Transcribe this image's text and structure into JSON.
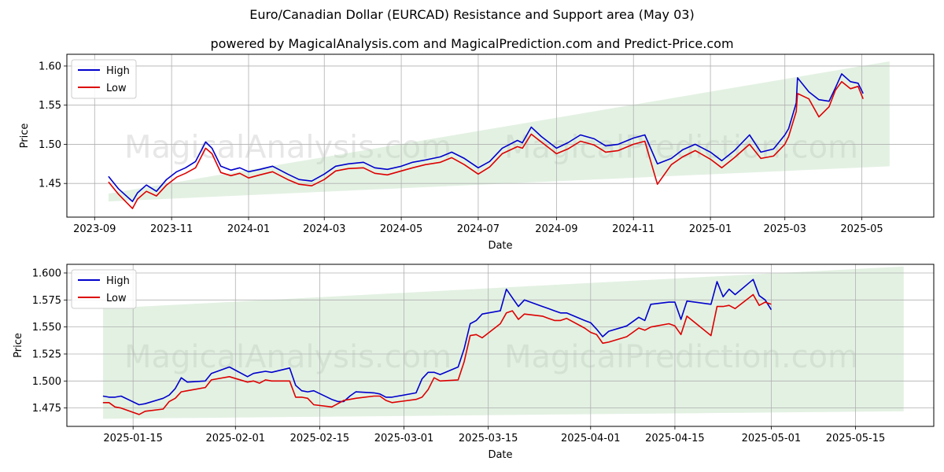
{
  "title": "Euro/Canadian Dollar (EURCAD) Resistance and Support area (May 03)",
  "subtitle": "powered by MagicalAnalysis.com and MagicalPrediction.com and Predict-Price.com",
  "watermarks": [
    "MagicalAnalysis.com",
    "MagicalPrediction.com"
  ],
  "colors": {
    "high": "#0000cc",
    "low": "#dd0000",
    "band": "#b8dcb8",
    "grid": "#b0b0b0"
  },
  "chart_data": [
    {
      "type": "line",
      "xlabel": "Date",
      "ylabel": "Price",
      "grid": true,
      "legend_position": "top-left",
      "xlim": [
        "2023-08-10",
        "2025-06-27"
      ],
      "ylim": [
        1.407,
        1.615
      ],
      "xticks": [
        "2023-09",
        "2023-11",
        "2024-01",
        "2024-03",
        "2024-05",
        "2024-07",
        "2024-09",
        "2024-11",
        "2025-01",
        "2025-03",
        "2025-05"
      ],
      "yticks": [
        1.45,
        1.5,
        1.55,
        1.6
      ],
      "ytick_decimals": 2,
      "band": {
        "x": [
          "2023-09-12",
          "2025-05-23"
        ],
        "upper": [
          1.437,
          1.606
        ],
        "lower": [
          1.427,
          1.472
        ]
      },
      "series": [
        {
          "name": "High",
          "x": [
            "2023-09-12",
            "2023-09-20",
            "2023-10-01",
            "2023-10-05",
            "2023-10-12",
            "2023-10-20",
            "2023-10-28",
            "2023-11-05",
            "2023-11-12",
            "2023-11-20",
            "2023-11-28",
            "2023-12-03",
            "2023-12-10",
            "2023-12-18",
            "2023-12-25",
            "2024-01-01",
            "2024-01-10",
            "2024-01-20",
            "2024-02-01",
            "2024-02-10",
            "2024-02-20",
            "2024-03-01",
            "2024-03-10",
            "2024-03-20",
            "2024-04-01",
            "2024-04-10",
            "2024-04-20",
            "2024-05-01",
            "2024-05-10",
            "2024-05-20",
            "2024-06-01",
            "2024-06-10",
            "2024-06-20",
            "2024-07-01",
            "2024-07-10",
            "2024-07-20",
            "2024-08-01",
            "2024-08-05",
            "2024-08-12",
            "2024-08-20",
            "2024-09-01",
            "2024-09-10",
            "2024-09-20",
            "2024-10-01",
            "2024-10-10",
            "2024-10-20",
            "2024-11-01",
            "2024-11-10",
            "2024-11-20",
            "2024-12-01",
            "2024-12-10",
            "2024-12-20",
            "2025-01-01",
            "2025-01-10",
            "2025-01-20",
            "2025-02-01",
            "2025-02-10",
            "2025-02-20",
            "2025-03-01",
            "2025-03-04",
            "2025-03-10",
            "2025-03-11",
            "2025-03-20",
            "2025-03-28",
            "2025-04-05",
            "2025-04-10",
            "2025-04-15",
            "2025-04-22",
            "2025-04-28",
            "2025-05-02"
          ],
          "values": [
            1.459,
            1.443,
            1.427,
            1.438,
            1.448,
            1.44,
            1.455,
            1.465,
            1.47,
            1.478,
            1.503,
            1.495,
            1.472,
            1.467,
            1.47,
            1.465,
            1.468,
            1.472,
            1.462,
            1.455,
            1.453,
            1.462,
            1.472,
            1.475,
            1.477,
            1.47,
            1.468,
            1.472,
            1.477,
            1.48,
            1.484,
            1.49,
            1.482,
            1.47,
            1.478,
            1.495,
            1.505,
            1.502,
            1.522,
            1.51,
            1.495,
            1.502,
            1.512,
            1.507,
            1.498,
            1.5,
            1.508,
            1.512,
            1.475,
            1.482,
            1.493,
            1.5,
            1.49,
            1.479,
            1.492,
            1.512,
            1.49,
            1.494,
            1.512,
            1.52,
            1.553,
            1.585,
            1.567,
            1.557,
            1.555,
            1.572,
            1.59,
            1.58,
            1.578,
            1.565
          ]
        },
        {
          "name": "Low",
          "x": [
            "2023-09-12",
            "2023-09-20",
            "2023-10-01",
            "2023-10-05",
            "2023-10-12",
            "2023-10-20",
            "2023-10-28",
            "2023-11-05",
            "2023-11-12",
            "2023-11-20",
            "2023-11-28",
            "2023-12-03",
            "2023-12-10",
            "2023-12-18",
            "2023-12-25",
            "2024-01-01",
            "2024-01-10",
            "2024-01-20",
            "2024-02-01",
            "2024-02-10",
            "2024-02-20",
            "2024-03-01",
            "2024-03-10",
            "2024-03-20",
            "2024-04-01",
            "2024-04-10",
            "2024-04-20",
            "2024-05-01",
            "2024-05-10",
            "2024-05-20",
            "2024-06-01",
            "2024-06-10",
            "2024-06-20",
            "2024-07-01",
            "2024-07-10",
            "2024-07-20",
            "2024-08-01",
            "2024-08-05",
            "2024-08-12",
            "2024-08-20",
            "2024-09-01",
            "2024-09-10",
            "2024-09-20",
            "2024-10-01",
            "2024-10-10",
            "2024-10-20",
            "2024-11-01",
            "2024-11-10",
            "2024-11-20",
            "2024-12-01",
            "2024-12-10",
            "2024-12-20",
            "2025-01-01",
            "2025-01-10",
            "2025-01-20",
            "2025-02-01",
            "2025-02-10",
            "2025-02-20",
            "2025-03-01",
            "2025-03-04",
            "2025-03-10",
            "2025-03-11",
            "2025-03-20",
            "2025-03-28",
            "2025-04-05",
            "2025-04-10",
            "2025-04-15",
            "2025-04-22",
            "2025-04-28",
            "2025-05-02"
          ],
          "values": [
            1.452,
            1.436,
            1.418,
            1.43,
            1.44,
            1.434,
            1.448,
            1.458,
            1.463,
            1.47,
            1.495,
            1.488,
            1.464,
            1.46,
            1.463,
            1.457,
            1.461,
            1.465,
            1.455,
            1.449,
            1.447,
            1.455,
            1.466,
            1.469,
            1.47,
            1.463,
            1.461,
            1.466,
            1.47,
            1.474,
            1.477,
            1.483,
            1.474,
            1.462,
            1.471,
            1.488,
            1.497,
            1.495,
            1.513,
            1.503,
            1.488,
            1.494,
            1.504,
            1.499,
            1.49,
            1.492,
            1.5,
            1.504,
            1.449,
            1.474,
            1.484,
            1.492,
            1.481,
            1.47,
            1.483,
            1.5,
            1.482,
            1.485,
            1.5,
            1.51,
            1.542,
            1.565,
            1.558,
            1.535,
            1.548,
            1.569,
            1.58,
            1.571,
            1.574,
            1.558
          ]
        }
      ]
    },
    {
      "type": "line",
      "xlabel": "Date",
      "ylabel": "Price",
      "grid": true,
      "legend_position": "top-left",
      "xlim": [
        "2025-01-04",
        "2025-05-28"
      ],
      "ylim": [
        1.458,
        1.608
      ],
      "xticks": [
        "2025-01-15",
        "2025-02-01",
        "2025-02-15",
        "2025-03-01",
        "2025-03-15",
        "2025-04-01",
        "2025-04-15",
        "2025-05-01",
        "2025-05-15"
      ],
      "yticks": [
        1.475,
        1.5,
        1.525,
        1.55,
        1.575,
        1.6
      ],
      "ytick_decimals": 3,
      "band": {
        "x": [
          "2025-01-10",
          "2025-05-23"
        ],
        "upper": [
          1.567,
          1.606
        ],
        "lower": [
          1.465,
          1.472
        ]
      },
      "series": [
        {
          "name": "High",
          "x": [
            "2025-01-10",
            "2025-01-11",
            "2025-01-12",
            "2025-01-13",
            "2025-01-16",
            "2025-01-17",
            "2025-01-20",
            "2025-01-21",
            "2025-01-22",
            "2025-01-23",
            "2025-01-24",
            "2025-01-27",
            "2025-01-28",
            "2025-01-31",
            "2025-02-03",
            "2025-02-04",
            "2025-02-05",
            "2025-02-06",
            "2025-02-07",
            "2025-02-10",
            "2025-02-11",
            "2025-02-12",
            "2025-02-13",
            "2025-02-14",
            "2025-02-17",
            "2025-02-18",
            "2025-02-19",
            "2025-02-20",
            "2025-02-21",
            "2025-02-24",
            "2025-02-25",
            "2025-02-26",
            "2025-02-27",
            "2025-03-03",
            "2025-03-04",
            "2025-03-05",
            "2025-03-06",
            "2025-03-07",
            "2025-03-10",
            "2025-03-11",
            "2025-03-12",
            "2025-03-13",
            "2025-03-14",
            "2025-03-17",
            "2025-03-18",
            "2025-03-19",
            "2025-03-20",
            "2025-03-21",
            "2025-03-24",
            "2025-03-25",
            "2025-03-26",
            "2025-03-27",
            "2025-03-28",
            "2025-03-31",
            "2025-04-01",
            "2025-04-02",
            "2025-04-03",
            "2025-04-04",
            "2025-04-07",
            "2025-04-08",
            "2025-04-09",
            "2025-04-10",
            "2025-04-11",
            "2025-04-14",
            "2025-04-15",
            "2025-04-16",
            "2025-04-17",
            "2025-04-21",
            "2025-04-22",
            "2025-04-23",
            "2025-04-24",
            "2025-04-25",
            "2025-04-28",
            "2025-04-29",
            "2025-04-30",
            "2025-05-01"
          ],
          "values": [
            1.486,
            1.485,
            1.485,
            1.486,
            1.478,
            1.479,
            1.484,
            1.487,
            1.493,
            1.503,
            1.499,
            1.5,
            1.507,
            1.513,
            1.504,
            1.507,
            1.508,
            1.509,
            1.508,
            1.512,
            1.496,
            1.491,
            1.49,
            1.491,
            1.483,
            1.481,
            1.481,
            1.486,
            1.49,
            1.489,
            1.488,
            1.485,
            1.485,
            1.489,
            1.502,
            1.508,
            1.508,
            1.506,
            1.513,
            1.53,
            1.553,
            1.556,
            1.562,
            1.565,
            1.585,
            1.577,
            1.569,
            1.575,
            1.569,
            1.567,
            1.565,
            1.563,
            1.563,
            1.556,
            1.554,
            1.548,
            1.541,
            1.546,
            1.551,
            1.555,
            1.559,
            1.556,
            1.571,
            1.573,
            1.573,
            1.557,
            1.574,
            1.571,
            1.592,
            1.578,
            1.585,
            1.58,
            1.594,
            1.579,
            1.575,
            1.566
          ]
        },
        {
          "name": "Low",
          "x": [
            "2025-01-10",
            "2025-01-11",
            "2025-01-12",
            "2025-01-13",
            "2025-01-16",
            "2025-01-17",
            "2025-01-20",
            "2025-01-21",
            "2025-01-22",
            "2025-01-23",
            "2025-01-24",
            "2025-01-27",
            "2025-01-28",
            "2025-01-31",
            "2025-02-03",
            "2025-02-04",
            "2025-02-05",
            "2025-02-06",
            "2025-02-07",
            "2025-02-10",
            "2025-02-11",
            "2025-02-12",
            "2025-02-13",
            "2025-02-14",
            "2025-02-17",
            "2025-02-18",
            "2025-02-19",
            "2025-02-20",
            "2025-02-21",
            "2025-02-24",
            "2025-02-25",
            "2025-02-26",
            "2025-02-27",
            "2025-03-03",
            "2025-03-04",
            "2025-03-05",
            "2025-03-06",
            "2025-03-07",
            "2025-03-10",
            "2025-03-11",
            "2025-03-12",
            "2025-03-13",
            "2025-03-14",
            "2025-03-17",
            "2025-03-18",
            "2025-03-19",
            "2025-03-20",
            "2025-03-21",
            "2025-03-24",
            "2025-03-25",
            "2025-03-26",
            "2025-03-27",
            "2025-03-28",
            "2025-03-31",
            "2025-04-01",
            "2025-04-02",
            "2025-04-03",
            "2025-04-04",
            "2025-04-07",
            "2025-04-08",
            "2025-04-09",
            "2025-04-10",
            "2025-04-11",
            "2025-04-14",
            "2025-04-15",
            "2025-04-16",
            "2025-04-17",
            "2025-04-21",
            "2025-04-22",
            "2025-04-23",
            "2025-04-24",
            "2025-04-25",
            "2025-04-28",
            "2025-04-29",
            "2025-04-30",
            "2025-05-01"
          ],
          "values": [
            1.48,
            1.48,
            1.476,
            1.475,
            1.469,
            1.472,
            1.474,
            1.481,
            1.484,
            1.49,
            1.491,
            1.494,
            1.501,
            1.504,
            1.499,
            1.5,
            1.498,
            1.501,
            1.5,
            1.5,
            1.485,
            1.485,
            1.484,
            1.478,
            1.476,
            1.479,
            1.482,
            1.483,
            1.484,
            1.486,
            1.486,
            1.482,
            1.48,
            1.483,
            1.485,
            1.492,
            1.503,
            1.5,
            1.501,
            1.518,
            1.542,
            1.543,
            1.54,
            1.553,
            1.563,
            1.565,
            1.557,
            1.562,
            1.56,
            1.558,
            1.556,
            1.556,
            1.558,
            1.549,
            1.545,
            1.543,
            1.535,
            1.536,
            1.541,
            1.545,
            1.549,
            1.547,
            1.55,
            1.553,
            1.551,
            1.543,
            1.56,
            1.542,
            1.569,
            1.569,
            1.57,
            1.567,
            1.58,
            1.57,
            1.573,
            1.571
          ]
        }
      ]
    }
  ]
}
